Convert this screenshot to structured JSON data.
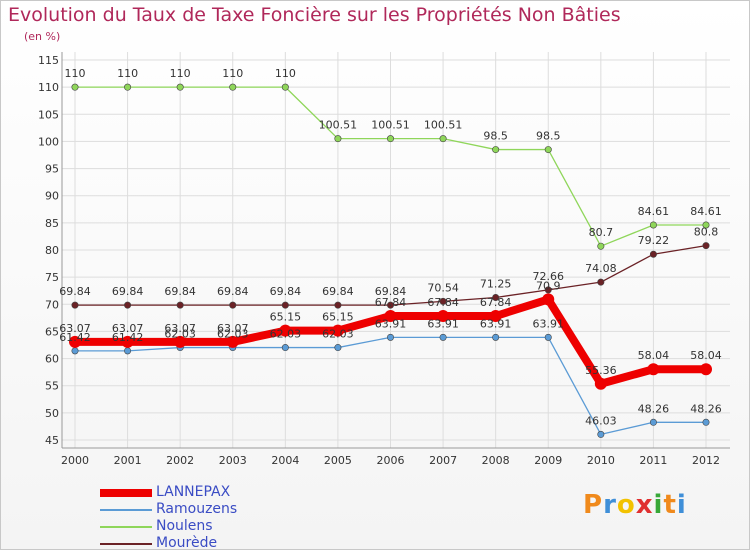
{
  "chart_data": {
    "type": "line",
    "title": "Evolution du Taux de Taxe Foncière sur les Propriétés Non Bâties",
    "subtitle": "(en %)",
    "x": [
      "2000",
      "2001",
      "2002",
      "2003",
      "2004",
      "2005",
      "2006",
      "2007",
      "2008",
      "2009",
      "2010",
      "2011",
      "2012"
    ],
    "y_ticks": [
      45,
      50,
      55,
      60,
      65,
      70,
      75,
      80,
      85,
      90,
      95,
      100,
      105,
      110,
      115
    ],
    "ylim": [
      45,
      115
    ],
    "grid": true,
    "legend_position": "bottom-left",
    "series": [
      {
        "name": "LANNEPAX",
        "color": "#ee0000",
        "values": [
          63.07,
          63.07,
          63.07,
          63.07,
          65.15,
          65.15,
          67.84,
          67.84,
          67.84,
          70.9,
          55.36,
          58.04,
          58.04
        ],
        "labels": [
          "63.07",
          "63.07",
          "63.07",
          "63.07",
          "65.15",
          "65.15",
          "67.84",
          "67.84",
          "67.84",
          "70.9",
          "55.36",
          "58.04",
          "58.04"
        ]
      },
      {
        "name": "Ramouzens",
        "color": "#5b9bd5",
        "values": [
          61.42,
          61.42,
          62.03,
          62.03,
          62.03,
          62.03,
          63.91,
          63.91,
          63.91,
          63.91,
          46.03,
          48.26,
          48.26
        ],
        "labels": [
          "61.42",
          "61.42",
          "62.03",
          "62.03",
          "62.03",
          "62.03",
          "63.91",
          "63.91",
          "63.91",
          "63.91",
          "46.03",
          "48.26",
          "48.26"
        ]
      },
      {
        "name": "Noulens",
        "color": "#8fd65a",
        "values": [
          110,
          110,
          110,
          110,
          110,
          100.51,
          100.51,
          100.51,
          98.5,
          98.5,
          80.7,
          84.61,
          84.61
        ],
        "labels": [
          "110",
          "110",
          "110",
          "110",
          "110",
          "100.51",
          "100.51",
          "100.51",
          "98.5",
          "98.5",
          "80.7",
          "84.61",
          "84.61"
        ]
      },
      {
        "name": "Mourède",
        "color": "#6b2226",
        "values": [
          69.84,
          69.84,
          69.84,
          69.84,
          69.84,
          69.84,
          69.84,
          70.54,
          71.25,
          72.66,
          74.08,
          79.22,
          80.8
        ],
        "labels": [
          "69.84",
          "69.84",
          "69.84",
          "69.84",
          "69.84",
          "69.84",
          "69.84",
          "70.54",
          "71.25",
          "72.66",
          "74.08",
          "79.22",
          "80.8"
        ]
      }
    ]
  },
  "brand": {
    "letters": [
      "P",
      "r",
      "o",
      "x",
      "i",
      "t",
      "i"
    ],
    "colors": [
      "#f08a1c",
      "#3f8fd8",
      "#f2c200",
      "#e03030",
      "#38a838",
      "#f08a1c",
      "#3f8fd8"
    ]
  }
}
